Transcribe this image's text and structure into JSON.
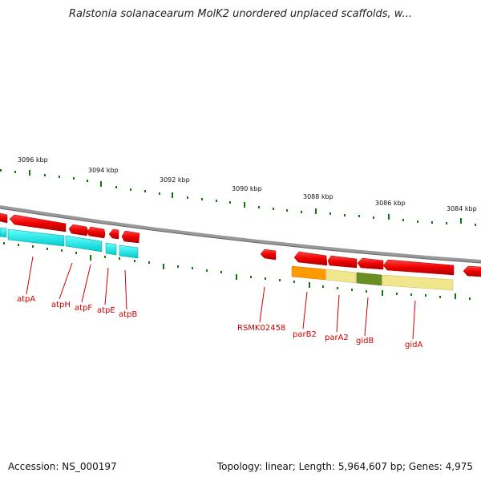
{
  "title": "Ralstonia solanacearum MolK2 unordered unplaced scaffolds, w...",
  "footer": {
    "accession": "Accession: NS_000197",
    "topology": "Topology: linear; Length: 5,964,607 bp; Genes: 4,975"
  },
  "scale": {
    "ticks": [
      "3096 kbp",
      "3094 kbp",
      "3092 kbp",
      "3090 kbp",
      "3088 kbp",
      "3086 kbp",
      "3084 kbp"
    ]
  },
  "genes": {
    "atpA": "atpA",
    "atpH": "atpH",
    "atpF": "atpF",
    "atpE": "atpE",
    "atpB": "atpB",
    "RSMK02458": "RSMK02458",
    "parB2": "parB2",
    "parA2": "parA2",
    "gidB": "gidB",
    "gidA": "gidA"
  },
  "colors": {
    "gene_arrow": "#ee0000",
    "label": "#cc0000",
    "tick": "#117711",
    "backbone": "#888888",
    "atp_operon": "#00e5ee",
    "parB2_track": "#ff9900",
    "parA2_track": "#f0e68c",
    "gidB_track": "#6b8e23",
    "gidA_track": "#f0e68c"
  }
}
